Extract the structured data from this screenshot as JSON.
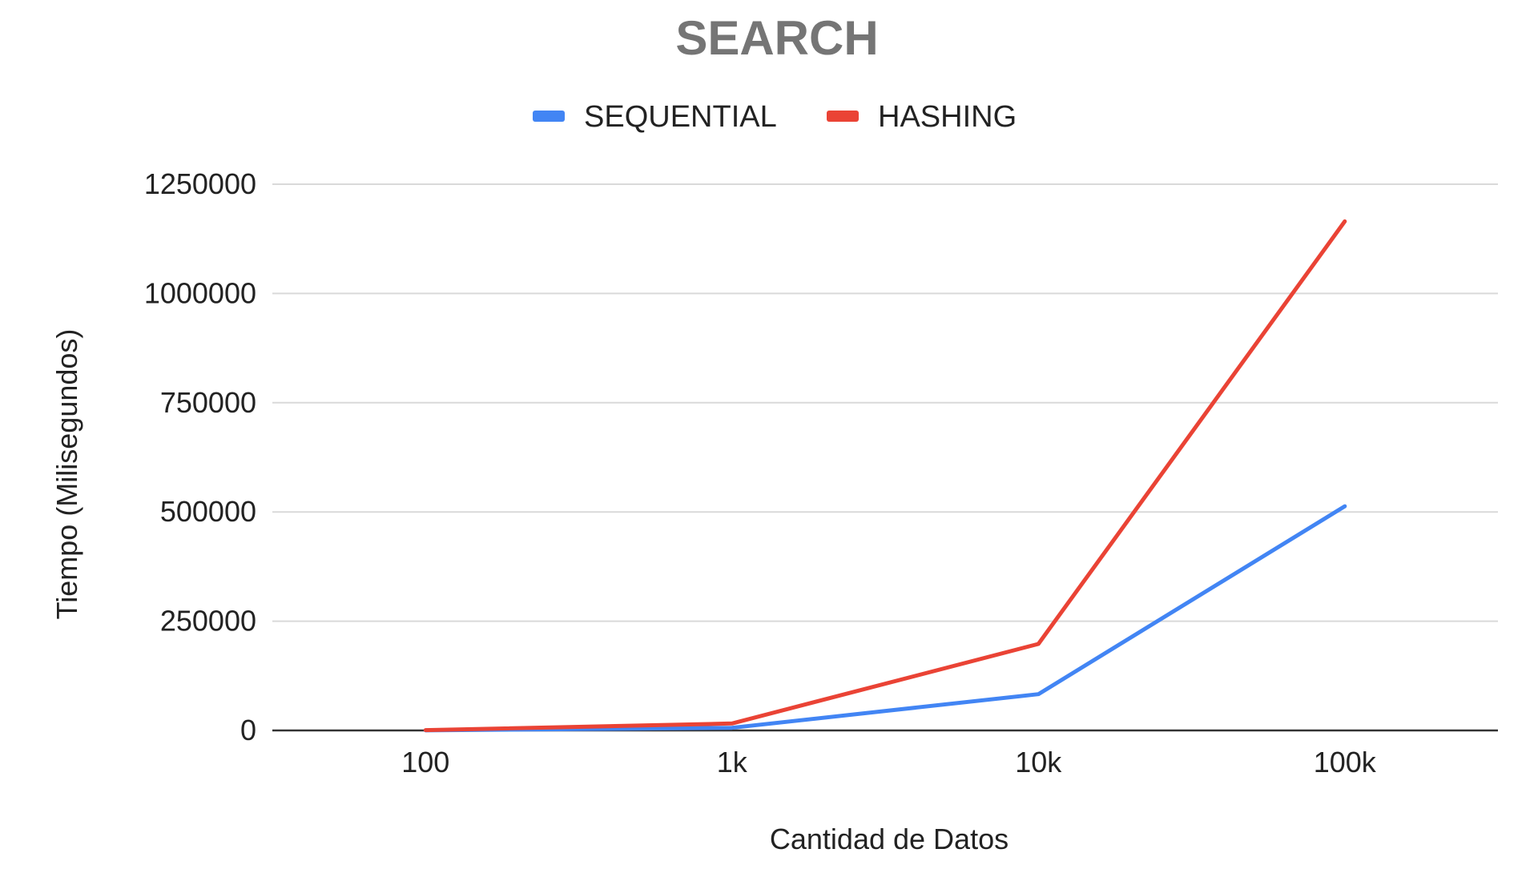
{
  "chart_data": {
    "type": "line",
    "title": "SEARCH",
    "xlabel": "Cantidad de Datos",
    "ylabel": "Tiempo (Milisegundos)",
    "categories": [
      "100",
      "1k",
      "10k",
      "100k"
    ],
    "ylim": [
      0,
      1250000
    ],
    "yticks": [
      "0",
      "250000",
      "500000",
      "750000",
      "1000000",
      "1250000"
    ],
    "ytick_values": [
      0,
      250000,
      500000,
      750000,
      1000000,
      1250000
    ],
    "grid": true,
    "legend": "top",
    "series": [
      {
        "name": "SEQUENTIAL",
        "color": "#4285f4",
        "values": [
          200,
          6000,
          83000,
          513000
        ]
      },
      {
        "name": "HASHING",
        "color": "#ea4335",
        "values": [
          800,
          16000,
          198000,
          1165000
        ]
      }
    ]
  }
}
